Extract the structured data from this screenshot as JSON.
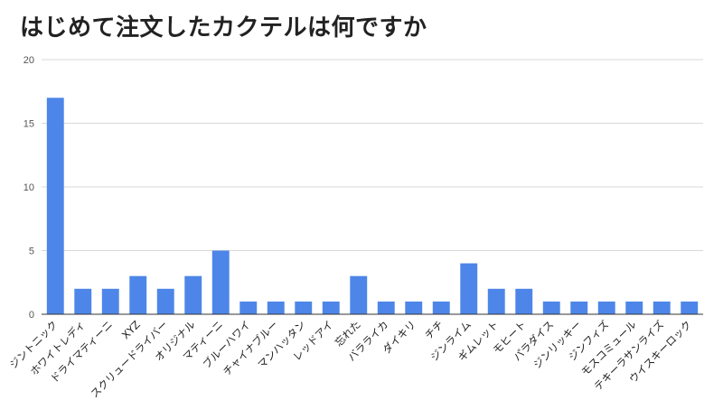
{
  "chart_data": {
    "type": "bar",
    "title": "はじめて注文したカクテルは何ですか",
    "xlabel": "",
    "ylabel": "",
    "ylim": [
      0,
      20
    ],
    "yticks": [
      0,
      5,
      10,
      15,
      20
    ],
    "grid": true,
    "legend": "none",
    "bar_color": "#4d86e8",
    "categories": [
      "ジントニック",
      "ホワイトレディ",
      "ドライマティーニ",
      "XYZ",
      "スクリュードライバー",
      "オリジナル",
      "マティーニ",
      "ブルーハワイ",
      "チャイナブルー",
      "マンハッタン",
      "レッドアイ",
      "忘れた",
      "バラライカ",
      "ダイキリ",
      "チチ",
      "ジンライム",
      "ギムレット",
      "モヒート",
      "パラダイス",
      "ジンリッキー",
      "ジンフィズ",
      "モスコミュール",
      "テキーラサンライズ",
      "ウイスキーロック"
    ],
    "values": [
      17,
      2,
      2,
      3,
      2,
      3,
      5,
      1,
      1,
      1,
      1,
      3,
      1,
      1,
      1,
      4,
      2,
      2,
      1,
      1,
      1,
      1,
      1,
      1
    ]
  }
}
